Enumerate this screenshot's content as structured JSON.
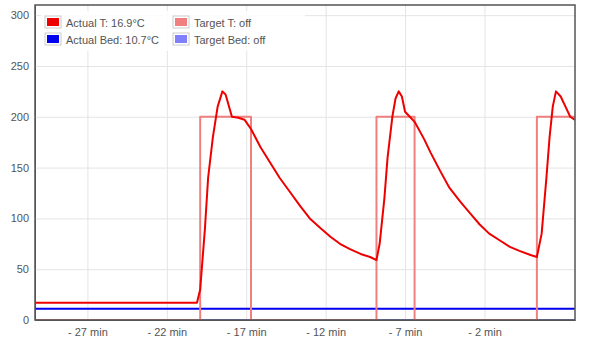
{
  "chart_data": {
    "type": "line",
    "xlim": [
      -30.3,
      3.7
    ],
    "xticks": [
      {
        "value": -27,
        "label": "- 27 min"
      },
      {
        "value": -22,
        "label": "- 22 min"
      },
      {
        "value": -17,
        "label": "- 17 min"
      },
      {
        "value": -12,
        "label": "- 12 min"
      },
      {
        "value": -7,
        "label": "- 7 min"
      },
      {
        "value": -2,
        "label": "- 2 min"
      }
    ],
    "ylim": [
      0,
      310
    ],
    "yticks": [
      0,
      50,
      100,
      150,
      200,
      250,
      300
    ],
    "grid": true,
    "legend": "upper left",
    "series": [
      {
        "name": "Actual T: 16.9°C",
        "color": "#ee0000",
        "x": [
          -30.3,
          -25,
          -20.1,
          -19.9,
          -19.6,
          -19.4,
          -19.1,
          -18.8,
          -18.5,
          -18.3,
          -17.9,
          -17.5,
          -17.1,
          -16.7,
          -16.1,
          -15.5,
          -14.9,
          -14.2,
          -13.6,
          -13.0,
          -12.3,
          -11.7,
          -11.1,
          -10.5,
          -9.8,
          -9.2,
          -8.8,
          -8.6,
          -8.3,
          -8.1,
          -7.8,
          -7.6,
          -7.4,
          -7.2,
          -7.0,
          -6.7,
          -6.4,
          -5.8,
          -5.4,
          -4.8,
          -4.2,
          -3.5,
          -2.9,
          -2.3,
          -1.7,
          -1.0,
          -0.4,
          0.2,
          0.9,
          1.3,
          1.6,
          1.9,
          2.1,
          2.3,
          2.5,
          2.8,
          3.1,
          3.4,
          3.7
        ],
        "values": [
          17,
          17,
          17,
          30,
          90,
          140,
          180,
          210,
          225,
          222,
          200,
          199,
          197,
          188,
          170,
          155,
          140,
          125,
          112,
          100,
          90,
          82,
          75,
          70,
          65,
          62,
          59,
          75,
          120,
          160,
          200,
          218,
          225,
          220,
          205,
          200,
          195,
          178,
          165,
          147,
          130,
          116,
          105,
          94,
          85,
          78,
          72,
          68,
          64,
          62,
          85,
          140,
          180,
          210,
          225,
          220,
          210,
          200,
          197
        ]
      },
      {
        "name": "Target T: off",
        "color": "#f08080",
        "x": [
          -30.3,
          -19.9,
          -19.9,
          -16.7,
          -16.7,
          -8.8,
          -8.8,
          -6.4,
          -6.4,
          1.3,
          1.3,
          3.7
        ],
        "values": [
          0,
          0,
          200,
          200,
          0,
          0,
          200,
          200,
          0,
          0,
          200,
          200
        ]
      },
      {
        "name": "Actual Bed: 10.7°C",
        "color": "#0000ee",
        "x": [
          -30.3,
          -20,
          -10,
          0,
          3.7
        ],
        "values": [
          11,
          11,
          11,
          11,
          11
        ]
      },
      {
        "name": "Target Bed: off",
        "color": "#8080ff",
        "x": [
          -30.3,
          3.7
        ],
        "values": [
          0,
          0
        ]
      }
    ]
  }
}
